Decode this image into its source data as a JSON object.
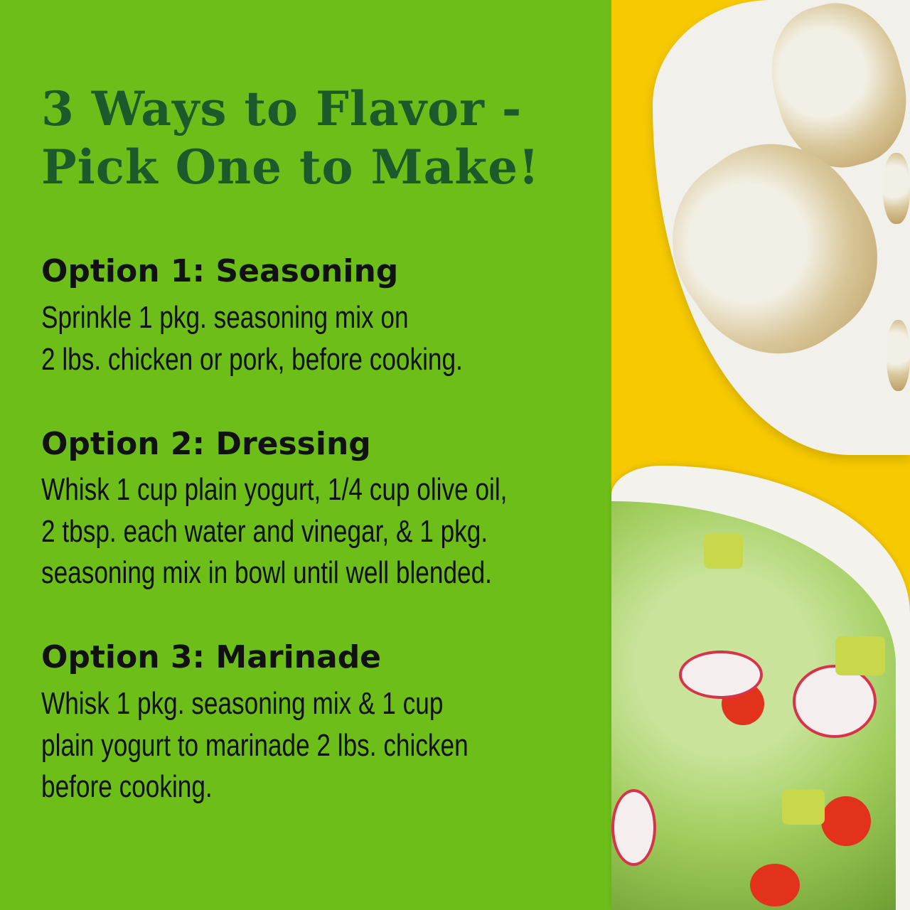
{
  "title": {
    "line1": "3 Ways to Flavor -",
    "line2": "Pick One to Make!"
  },
  "options": [
    {
      "heading": "Option 1: Seasoning",
      "lines": [
        "Sprinkle 1 pkg. seasoning mix on",
        "2 lbs. chicken or pork, before cooking."
      ]
    },
    {
      "heading": "Option 2: Dressing",
      "lines": [
        "Whisk 1 cup plain yogurt, 1/4 cup olive oil,",
        "2 tbsp. each water and vinegar, & 1 pkg.",
        "seasoning mix in bowl until well blended."
      ]
    },
    {
      "heading": "Option 3: Marinade",
      "lines": [
        "Whisk 1 pkg. seasoning mix & 1 cup",
        "plain yogurt to marinade 2 lbs. chicken",
        "before cooking."
      ]
    }
  ],
  "colors": {
    "panel": "#6dbe19",
    "title": "#1d5a2b",
    "background": "#f6c900"
  }
}
